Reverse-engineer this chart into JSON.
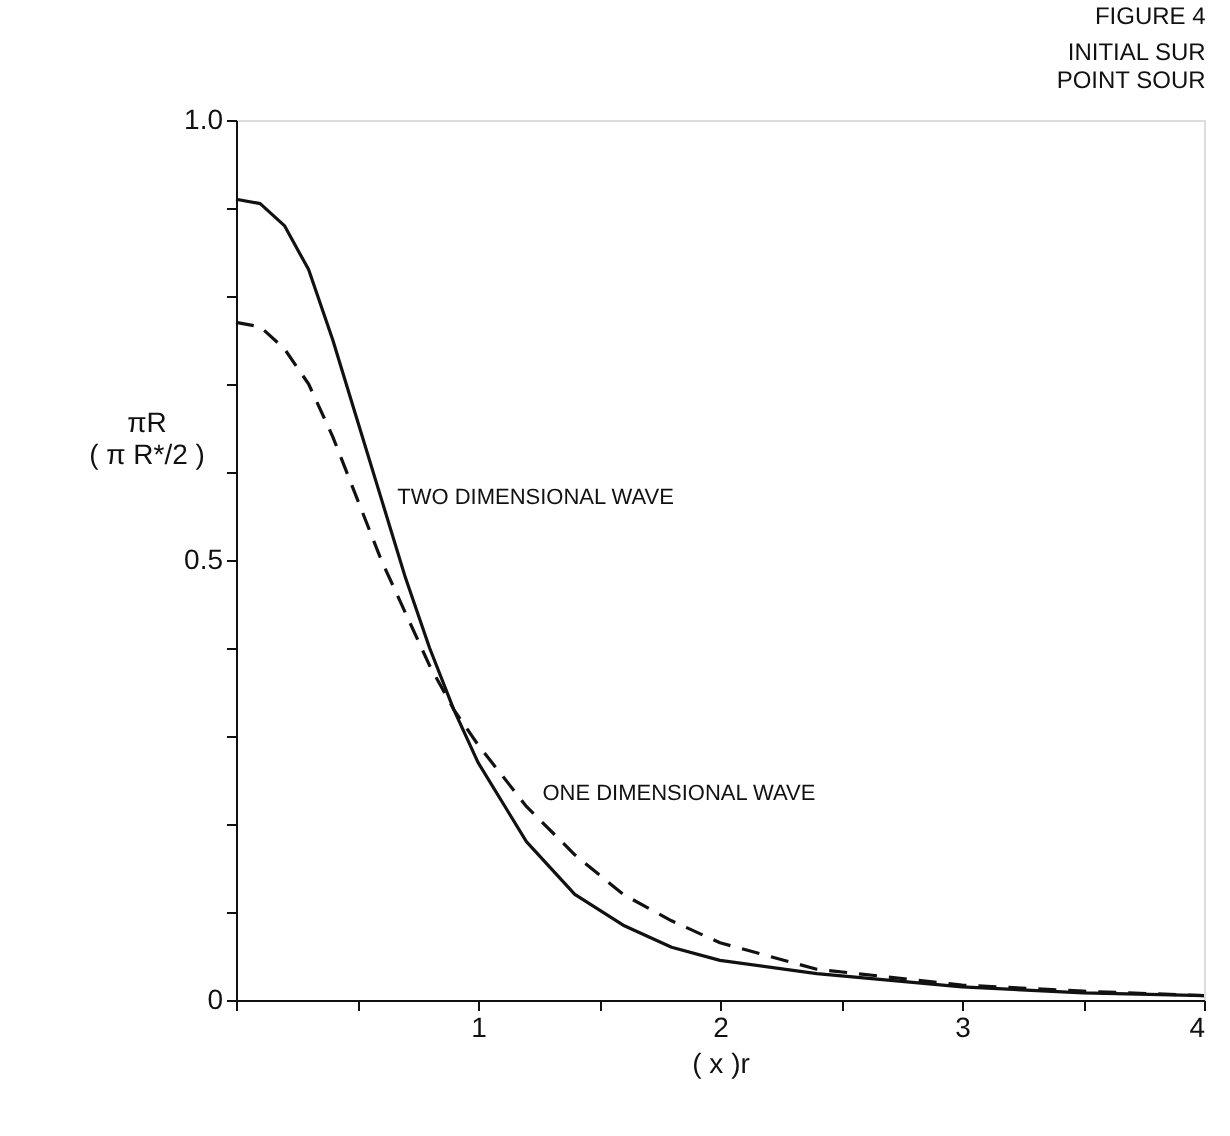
{
  "chart_data": {
    "type": "line",
    "title": "FIGURE 4",
    "subtitle": "INITIAL SUR\nPOINT SOUR",
    "xlabel": "( x )r",
    "ylabel": "πR\n( π R*/2 )",
    "x": [
      0,
      0.1,
      0.2,
      0.3,
      0.4,
      0.5,
      0.6,
      0.7,
      0.8,
      0.9,
      1.0,
      1.2,
      1.4,
      1.6,
      1.8,
      2.0,
      2.4,
      3.0,
      3.5,
      4.0
    ],
    "series": [
      {
        "name": "TWO DIMENSIONAL WAVE",
        "color": "#111111",
        "line_style": "solid",
        "values": [
          0.91,
          0.905,
          0.88,
          0.83,
          0.75,
          0.66,
          0.57,
          0.48,
          0.4,
          0.33,
          0.27,
          0.18,
          0.12,
          0.085,
          0.06,
          0.045,
          0.03,
          0.015,
          0.008,
          0.005
        ]
      },
      {
        "name": "ONE DIMENSIONAL WAVE",
        "color": "#111111",
        "line_style": "dashed",
        "values": [
          0.77,
          0.765,
          0.74,
          0.7,
          0.64,
          0.57,
          0.5,
          0.44,
          0.38,
          0.33,
          0.29,
          0.22,
          0.165,
          0.12,
          0.09,
          0.065,
          0.035,
          0.017,
          0.01,
          0.005
        ]
      }
    ],
    "xlim": [
      0,
      4
    ],
    "ylim": [
      0,
      1.0
    ],
    "xticks": [
      {
        "value": 0,
        "label": null
      },
      {
        "value": 0.5,
        "label": null
      },
      1,
      {
        "value": 1.5,
        "label": null
      },
      2,
      {
        "value": 2.5,
        "label": null
      },
      3,
      {
        "value": 3.5,
        "label": null
      },
      4
    ],
    "yticks": [
      0,
      {
        "value": 0.1,
        "label": null
      },
      {
        "value": 0.2,
        "label": null
      },
      {
        "value": 0.3,
        "label": null
      },
      {
        "value": 0.4,
        "label": null
      },
      0.5,
      {
        "value": 0.6,
        "label": null
      },
      {
        "value": 0.7,
        "label": null
      },
      {
        "value": 0.8,
        "label": null
      },
      {
        "value": 0.9,
        "label": null
      },
      {
        "value": 1,
        "label": "1.0"
      }
    ],
    "grid": false,
    "legend": false,
    "marker": "none"
  }
}
